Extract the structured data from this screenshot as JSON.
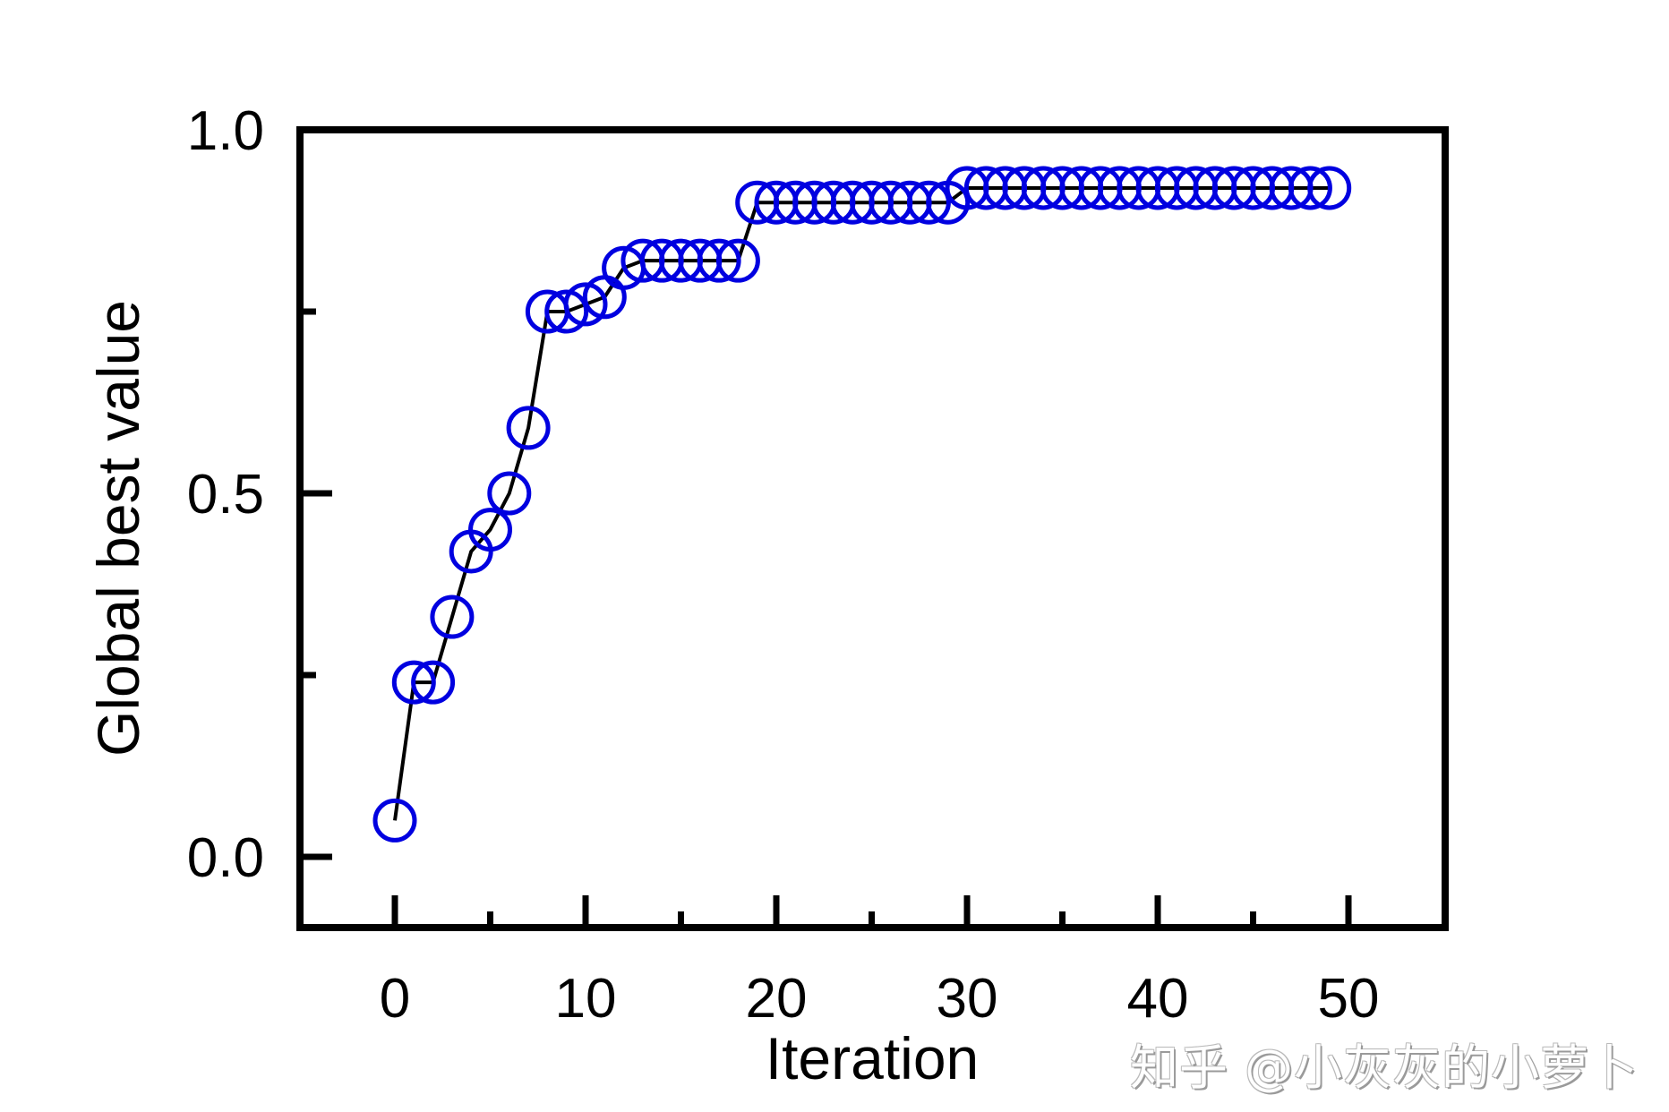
{
  "chart_data": {
    "type": "line",
    "title": "",
    "xlabel": "Iteration",
    "ylabel": "Global best value",
    "xlim": [
      -5,
      55
    ],
    "ylim": [
      -0.1,
      1.0
    ],
    "x_ticks": [
      0,
      10,
      20,
      30,
      40,
      50
    ],
    "x_tick_labels": [
      "0",
      "10",
      "20",
      "30",
      "40",
      "50"
    ],
    "x_minor_ticks": [
      5,
      15,
      25,
      35,
      45
    ],
    "y_ticks": [
      0.0,
      0.5,
      1.0
    ],
    "y_tick_labels": [
      "0.0",
      "0.5",
      "1.0"
    ],
    "y_minor_ticks": [
      0.25,
      0.75
    ],
    "grid": false,
    "legend": null,
    "series": [
      {
        "name": "Global best value",
        "line_color": "#000000",
        "marker": "open-circle",
        "marker_color": "#0000e0",
        "x": [
          0,
          1,
          2,
          3,
          4,
          5,
          6,
          7,
          8,
          9,
          10,
          11,
          12,
          13,
          14,
          15,
          16,
          17,
          18,
          19,
          20,
          21,
          22,
          23,
          24,
          25,
          26,
          27,
          28,
          29,
          30,
          31,
          32,
          33,
          34,
          35,
          36,
          37,
          38,
          39,
          40,
          41,
          42,
          43,
          44,
          45,
          46,
          47,
          48,
          49
        ],
        "values": [
          0.05,
          0.24,
          0.24,
          0.33,
          0.42,
          0.45,
          0.5,
          0.59,
          0.75,
          0.75,
          0.76,
          0.77,
          0.81,
          0.82,
          0.82,
          0.82,
          0.82,
          0.82,
          0.82,
          0.9,
          0.9,
          0.9,
          0.9,
          0.9,
          0.9,
          0.9,
          0.9,
          0.9,
          0.9,
          0.9,
          0.92,
          0.92,
          0.92,
          0.92,
          0.92,
          0.92,
          0.92,
          0.92,
          0.92,
          0.92,
          0.92,
          0.92,
          0.92,
          0.92,
          0.92,
          0.92,
          0.92,
          0.92,
          0.92,
          0.92
        ]
      }
    ]
  },
  "watermark": "知乎 @小灰灰的小萝卜"
}
